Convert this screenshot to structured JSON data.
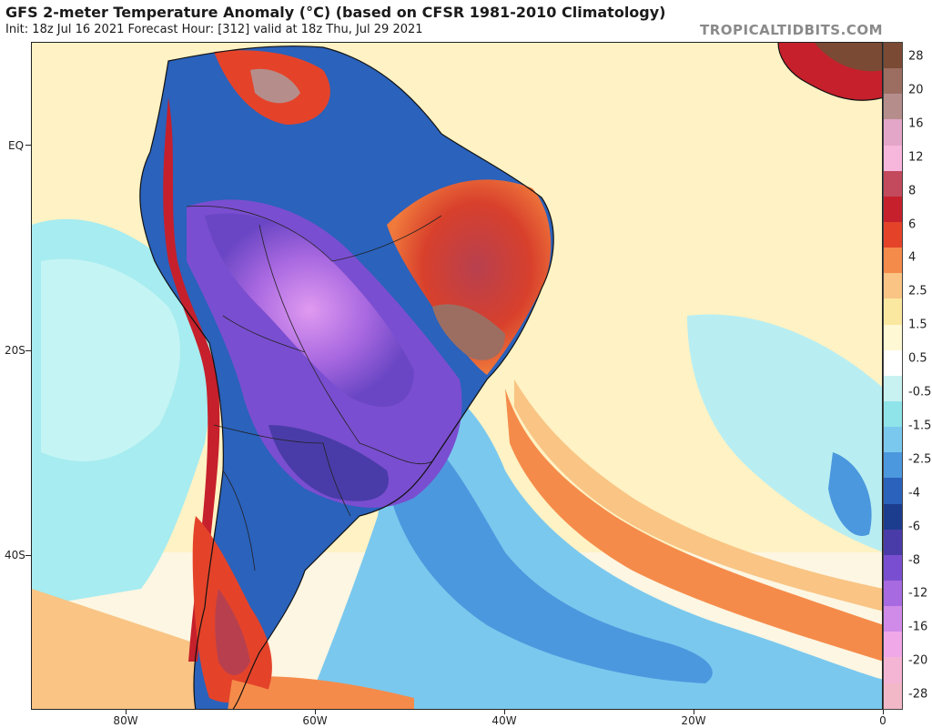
{
  "header": {
    "title": "GFS 2-meter Temperature Anomaly (°C) (based on CFSR 1981-2010 Climatology)",
    "subtitle": "Init: 18z Jul 16 2021   Forecast Hour: [312]   valid at 18z Thu, Jul 29 2021",
    "brand": "TROPICALTIDBITS.COM"
  },
  "axes": {
    "lat_labels": [
      "EQ",
      "20S",
      "40S"
    ],
    "lon_labels": [
      "80W",
      "60W",
      "40W",
      "20W",
      "0"
    ]
  },
  "colorbar": {
    "labels": [
      "28",
      "20",
      "16",
      "12",
      "8",
      "6",
      "4",
      "2.5",
      "1.5",
      "0.5",
      "-0.5",
      "-1.5",
      "-2.5",
      "-4",
      "-6",
      "-8",
      "-12",
      "-16",
      "-20",
      "-28"
    ],
    "colors": [
      "#7a4a34",
      "#9c6e62",
      "#b58e8c",
      "#e4a6c8",
      "#f7b6dc",
      "#c24a5c",
      "#c6202c",
      "#e4432a",
      "#f58b4a",
      "#f9c484",
      "#fbe8a0",
      "#fff8d4",
      "#ffffff",
      "#c8f2f2",
      "#8ee4e8",
      "#7ac8ee",
      "#4c98de",
      "#2a62bc",
      "#1c3c8e",
      "#4a3ca8",
      "#7a4ed0",
      "#a86ae0",
      "#d08ae8",
      "#f0a8e8",
      "#f4b4d4",
      "#f2b8c8"
    ]
  },
  "map": {
    "ocean_base": "#fff2c4"
  }
}
